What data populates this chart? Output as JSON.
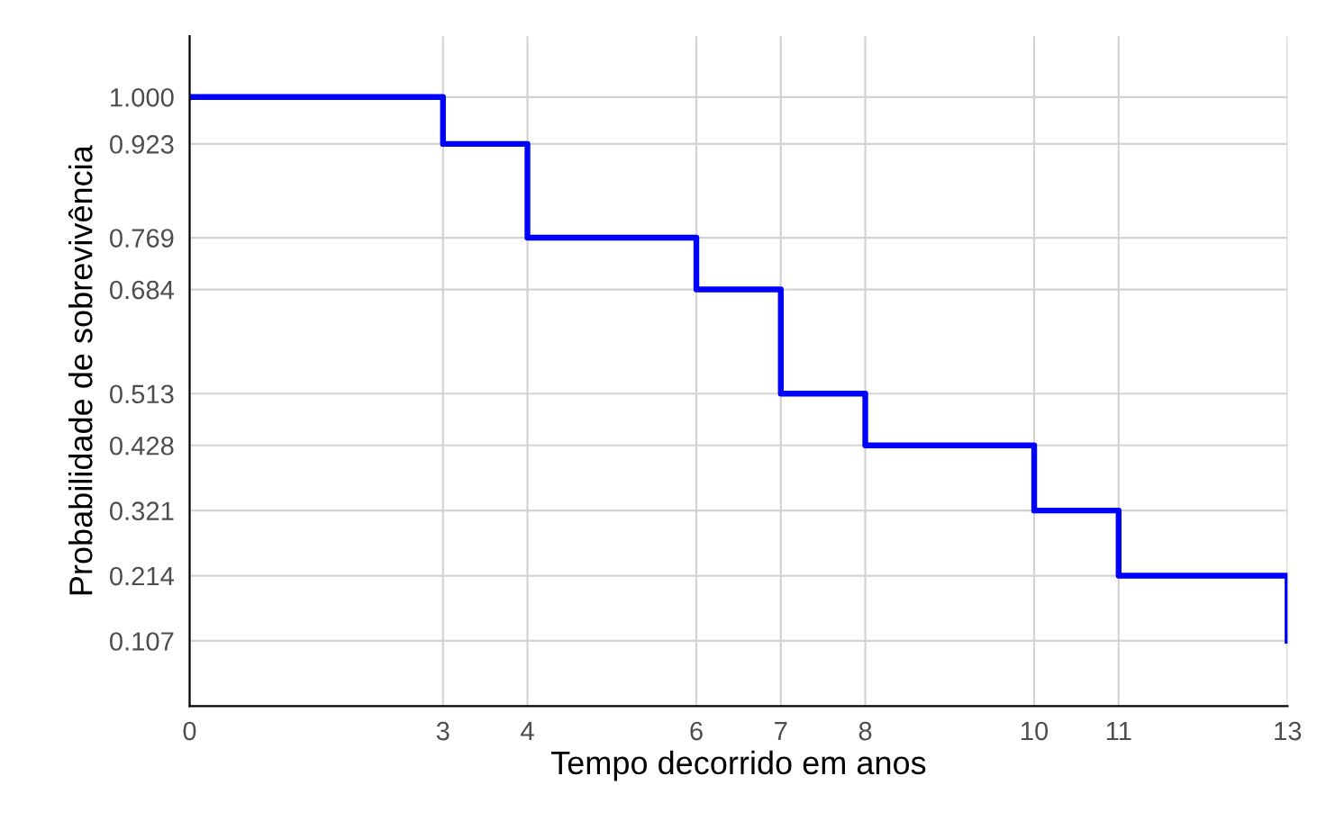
{
  "chart_data": {
    "type": "step",
    "xlabel": "Tempo decorrido em anos",
    "ylabel": "Probabilidade de sobrevivência",
    "x": [
      0,
      3,
      4,
      6,
      7,
      8,
      10,
      11,
      13
    ],
    "series": [
      {
        "color": "#0000ff",
        "values": [
          1.0,
          0.923,
          0.769,
          0.684,
          0.513,
          0.428,
          0.321,
          0.214,
          0.107
        ]
      }
    ],
    "xlim": [
      0,
      13
    ],
    "xticks": [
      0,
      3,
      4,
      6,
      7,
      8,
      10,
      11,
      13
    ],
    "ylim": [
      0,
      1.1
    ],
    "yticks": [
      {
        "value": 1.0,
        "label": "1.000"
      },
      {
        "value": 0.923,
        "label": "0.923"
      },
      {
        "value": 0.769,
        "label": "0.769"
      },
      {
        "value": 0.684,
        "label": "0.684"
      },
      {
        "value": 0.513,
        "label": "0.513"
      },
      {
        "value": 0.428,
        "label": "0.428"
      },
      {
        "value": 0.321,
        "label": "0.321"
      },
      {
        "value": 0.214,
        "label": "0.214"
      },
      {
        "value": 0.107,
        "label": "0.107"
      }
    ],
    "grid": true,
    "line_style": "solid"
  }
}
